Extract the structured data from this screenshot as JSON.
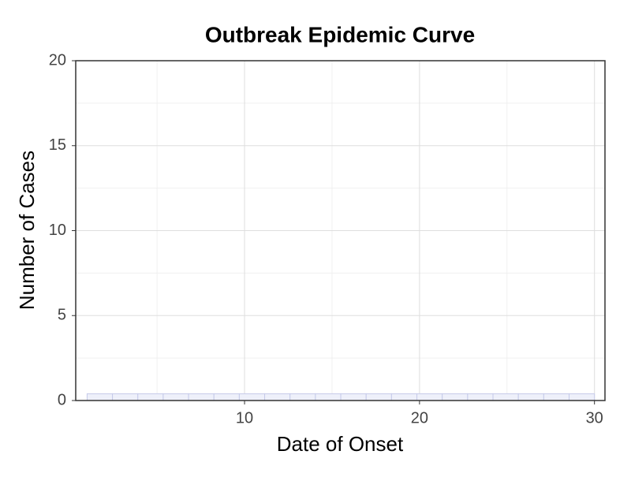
{
  "chart_data": {
    "type": "histogram",
    "title": "Outbreak Epidemic Curve",
    "x_label": "Date of Onset",
    "y_label": "Number of Cases",
    "bins": [
      1,
      2.45,
      3.9,
      5.35,
      6.8,
      8.25,
      9.7,
      11.15,
      12.6,
      14.05,
      15.5,
      16.95,
      18.4,
      19.85,
      21.3,
      22.75,
      24.2,
      25.65,
      27.1,
      28.55,
      30
    ],
    "values": [
      0.4,
      0.4,
      0.4,
      0.4,
      0.4,
      0.4,
      0.4,
      0.4,
      0.4,
      0.4,
      0.4,
      0.4,
      0.4,
      0.4,
      0.4,
      0.4,
      0.4,
      0.4,
      0.4,
      0.4
    ],
    "color": "#eef0fa",
    "edge_color": "#c5cae9",
    "xlim": [
      0.35,
      30.6
    ],
    "xticks": [
      10,
      20,
      30
    ],
    "xminor": [
      5,
      15,
      25
    ],
    "ylim": [
      0,
      20
    ],
    "yticks": [
      0,
      5,
      10,
      15,
      20
    ],
    "yminor": [
      2.5,
      7.5,
      12.5,
      17.5
    ],
    "grid": true
  }
}
